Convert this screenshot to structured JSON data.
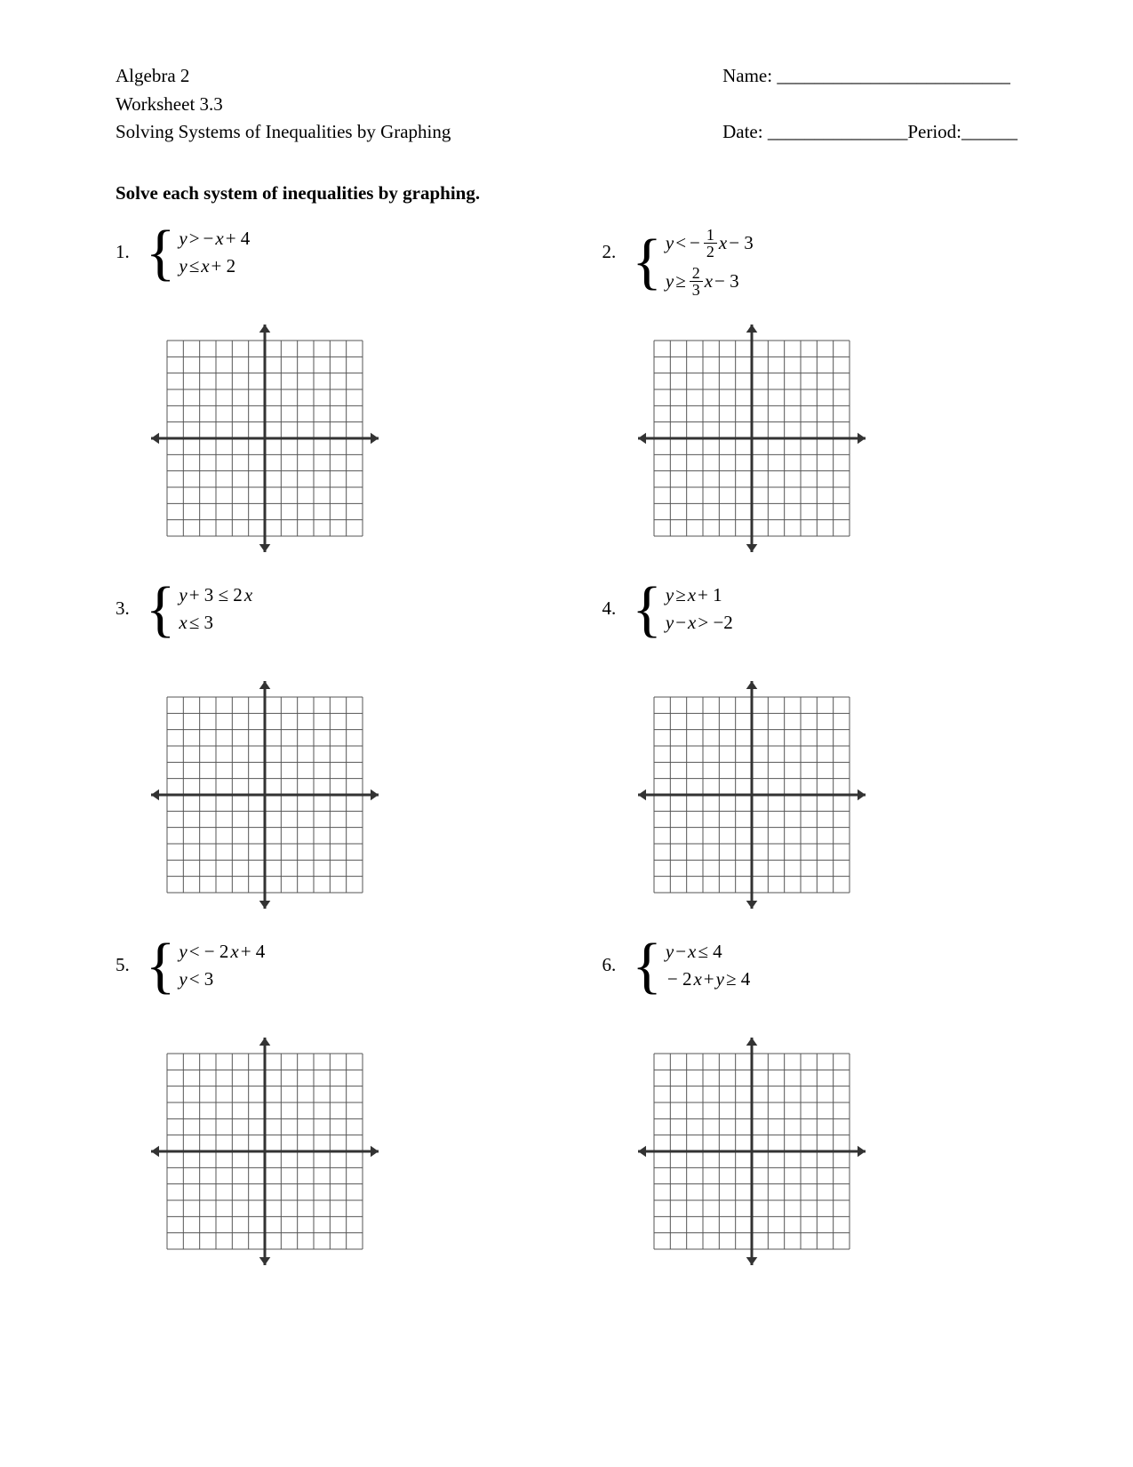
{
  "header": {
    "course": "Algebra 2",
    "worksheet": "Worksheet 3.3",
    "topic": "Solving Systems of Inequalities by Graphing",
    "name_label": "Name: _________________________",
    "date_label": "Date: _______________",
    "period_label": "Period:______"
  },
  "instructions": "Solve each system of inequalities by graphing.",
  "problems": [
    {
      "number": "1.",
      "lines": [
        [
          {
            "t": "var",
            "v": "y"
          },
          {
            "t": "op",
            "v": " > "
          },
          {
            "t": "op",
            "v": "− "
          },
          {
            "t": "var",
            "v": "x"
          },
          {
            "t": "op",
            "v": " + 4"
          }
        ],
        [
          {
            "t": "var",
            "v": "y"
          },
          {
            "t": "op",
            "v": " ≤ "
          },
          {
            "t": "var",
            "v": "x"
          },
          {
            "t": "op",
            "v": " + 2"
          }
        ]
      ]
    },
    {
      "number": "2.",
      "lines": [
        [
          {
            "t": "var",
            "v": "y"
          },
          {
            "t": "op",
            "v": " < "
          },
          {
            "t": "op",
            "v": "− "
          },
          {
            "t": "frac",
            "n": "1",
            "d": "2"
          },
          {
            "t": "var",
            "v": "x"
          },
          {
            "t": "op",
            "v": " − 3"
          }
        ],
        [
          {
            "t": "var",
            "v": "y"
          },
          {
            "t": "op",
            "v": " ≥ "
          },
          {
            "t": "frac",
            "n": "2",
            "d": "3"
          },
          {
            "t": "var",
            "v": "x"
          },
          {
            "t": "op",
            "v": " − 3"
          }
        ]
      ]
    },
    {
      "number": "3.",
      "lines": [
        [
          {
            "t": "var",
            "v": "y"
          },
          {
            "t": "op",
            "v": " + 3 ≤ 2"
          },
          {
            "t": "var",
            "v": "x"
          }
        ],
        [
          {
            "t": "var",
            "v": "x"
          },
          {
            "t": "op",
            "v": " ≤ 3"
          }
        ]
      ]
    },
    {
      "number": "4.",
      "lines": [
        [
          {
            "t": "var",
            "v": "y"
          },
          {
            "t": "op",
            "v": " ≥ "
          },
          {
            "t": "var",
            "v": "x"
          },
          {
            "t": "op",
            "v": " + 1"
          }
        ],
        [
          {
            "t": "var",
            "v": "y"
          },
          {
            "t": "op",
            "v": " − "
          },
          {
            "t": "var",
            "v": "x"
          },
          {
            "t": "op",
            "v": " > −2"
          }
        ]
      ]
    },
    {
      "number": "5.",
      "lines": [
        [
          {
            "t": "var",
            "v": "y"
          },
          {
            "t": "op",
            "v": " < − 2"
          },
          {
            "t": "var",
            "v": "x"
          },
          {
            "t": "op",
            "v": " + 4"
          }
        ],
        [
          {
            "t": "var",
            "v": "y"
          },
          {
            "t": "op",
            "v": " < 3"
          }
        ]
      ]
    },
    {
      "number": "6.",
      "lines": [
        [
          {
            "t": "var",
            "v": "y"
          },
          {
            "t": "op",
            "v": " − "
          },
          {
            "t": "var",
            "v": "x"
          },
          {
            "t": "op",
            "v": " ≤ 4"
          }
        ],
        [
          {
            "t": "op",
            "v": "− 2"
          },
          {
            "t": "var",
            "v": "x"
          },
          {
            "t": "op",
            "v": " + "
          },
          {
            "t": "var",
            "v": "y"
          },
          {
            "t": "op",
            "v": " ≥ 4"
          }
        ]
      ]
    }
  ],
  "grid": {
    "size": 220,
    "cells": 12,
    "axis_extend": 18,
    "grid_color": "#555555",
    "axis_color": "#333333",
    "grid_stroke": 1,
    "axis_stroke": 3,
    "arrow_size": 9
  },
  "layout": {
    "background": "#ffffff",
    "text_color": "#000000",
    "body_fontsize": 21
  }
}
